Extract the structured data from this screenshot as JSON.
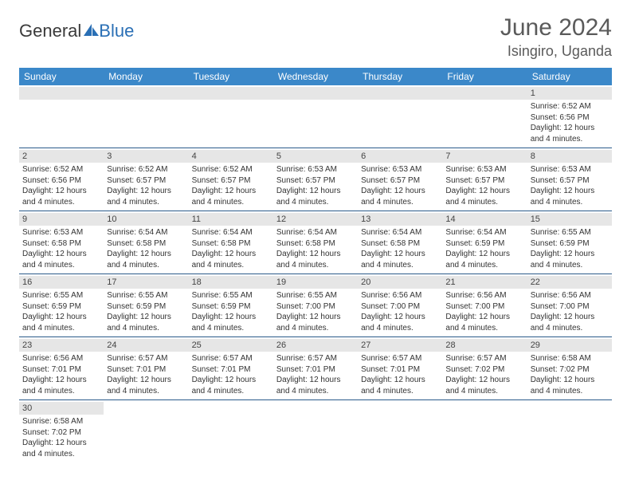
{
  "logo": {
    "word1": "General",
    "word2": "Blue"
  },
  "header": {
    "title": "June 2024",
    "location": "Isingiro, Uganda"
  },
  "colors": {
    "header_bg": "#3b88c9",
    "header_text": "#ffffff",
    "daynum_bg": "#e6e6e6",
    "row_border": "#2a5a8a",
    "logo_blue": "#2a6fb5",
    "title_gray": "#5a5a5a"
  },
  "day_headers": [
    "Sunday",
    "Monday",
    "Tuesday",
    "Wednesday",
    "Thursday",
    "Friday",
    "Saturday"
  ],
  "weeks": [
    [
      null,
      null,
      null,
      null,
      null,
      null,
      {
        "n": "1",
        "sr": "Sunrise: 6:52 AM",
        "ss": "Sunset: 6:56 PM",
        "dl1": "Daylight: 12 hours",
        "dl2": "and 4 minutes."
      }
    ],
    [
      {
        "n": "2",
        "sr": "Sunrise: 6:52 AM",
        "ss": "Sunset: 6:56 PM",
        "dl1": "Daylight: 12 hours",
        "dl2": "and 4 minutes."
      },
      {
        "n": "3",
        "sr": "Sunrise: 6:52 AM",
        "ss": "Sunset: 6:57 PM",
        "dl1": "Daylight: 12 hours",
        "dl2": "and 4 minutes."
      },
      {
        "n": "4",
        "sr": "Sunrise: 6:52 AM",
        "ss": "Sunset: 6:57 PM",
        "dl1": "Daylight: 12 hours",
        "dl2": "and 4 minutes."
      },
      {
        "n": "5",
        "sr": "Sunrise: 6:53 AM",
        "ss": "Sunset: 6:57 PM",
        "dl1": "Daylight: 12 hours",
        "dl2": "and 4 minutes."
      },
      {
        "n": "6",
        "sr": "Sunrise: 6:53 AM",
        "ss": "Sunset: 6:57 PM",
        "dl1": "Daylight: 12 hours",
        "dl2": "and 4 minutes."
      },
      {
        "n": "7",
        "sr": "Sunrise: 6:53 AM",
        "ss": "Sunset: 6:57 PM",
        "dl1": "Daylight: 12 hours",
        "dl2": "and 4 minutes."
      },
      {
        "n": "8",
        "sr": "Sunrise: 6:53 AM",
        "ss": "Sunset: 6:57 PM",
        "dl1": "Daylight: 12 hours",
        "dl2": "and 4 minutes."
      }
    ],
    [
      {
        "n": "9",
        "sr": "Sunrise: 6:53 AM",
        "ss": "Sunset: 6:58 PM",
        "dl1": "Daylight: 12 hours",
        "dl2": "and 4 minutes."
      },
      {
        "n": "10",
        "sr": "Sunrise: 6:54 AM",
        "ss": "Sunset: 6:58 PM",
        "dl1": "Daylight: 12 hours",
        "dl2": "and 4 minutes."
      },
      {
        "n": "11",
        "sr": "Sunrise: 6:54 AM",
        "ss": "Sunset: 6:58 PM",
        "dl1": "Daylight: 12 hours",
        "dl2": "and 4 minutes."
      },
      {
        "n": "12",
        "sr": "Sunrise: 6:54 AM",
        "ss": "Sunset: 6:58 PM",
        "dl1": "Daylight: 12 hours",
        "dl2": "and 4 minutes."
      },
      {
        "n": "13",
        "sr": "Sunrise: 6:54 AM",
        "ss": "Sunset: 6:58 PM",
        "dl1": "Daylight: 12 hours",
        "dl2": "and 4 minutes."
      },
      {
        "n": "14",
        "sr": "Sunrise: 6:54 AM",
        "ss": "Sunset: 6:59 PM",
        "dl1": "Daylight: 12 hours",
        "dl2": "and 4 minutes."
      },
      {
        "n": "15",
        "sr": "Sunrise: 6:55 AM",
        "ss": "Sunset: 6:59 PM",
        "dl1": "Daylight: 12 hours",
        "dl2": "and 4 minutes."
      }
    ],
    [
      {
        "n": "16",
        "sr": "Sunrise: 6:55 AM",
        "ss": "Sunset: 6:59 PM",
        "dl1": "Daylight: 12 hours",
        "dl2": "and 4 minutes."
      },
      {
        "n": "17",
        "sr": "Sunrise: 6:55 AM",
        "ss": "Sunset: 6:59 PM",
        "dl1": "Daylight: 12 hours",
        "dl2": "and 4 minutes."
      },
      {
        "n": "18",
        "sr": "Sunrise: 6:55 AM",
        "ss": "Sunset: 6:59 PM",
        "dl1": "Daylight: 12 hours",
        "dl2": "and 4 minutes."
      },
      {
        "n": "19",
        "sr": "Sunrise: 6:55 AM",
        "ss": "Sunset: 7:00 PM",
        "dl1": "Daylight: 12 hours",
        "dl2": "and 4 minutes."
      },
      {
        "n": "20",
        "sr": "Sunrise: 6:56 AM",
        "ss": "Sunset: 7:00 PM",
        "dl1": "Daylight: 12 hours",
        "dl2": "and 4 minutes."
      },
      {
        "n": "21",
        "sr": "Sunrise: 6:56 AM",
        "ss": "Sunset: 7:00 PM",
        "dl1": "Daylight: 12 hours",
        "dl2": "and 4 minutes."
      },
      {
        "n": "22",
        "sr": "Sunrise: 6:56 AM",
        "ss": "Sunset: 7:00 PM",
        "dl1": "Daylight: 12 hours",
        "dl2": "and 4 minutes."
      }
    ],
    [
      {
        "n": "23",
        "sr": "Sunrise: 6:56 AM",
        "ss": "Sunset: 7:01 PM",
        "dl1": "Daylight: 12 hours",
        "dl2": "and 4 minutes."
      },
      {
        "n": "24",
        "sr": "Sunrise: 6:57 AM",
        "ss": "Sunset: 7:01 PM",
        "dl1": "Daylight: 12 hours",
        "dl2": "and 4 minutes."
      },
      {
        "n": "25",
        "sr": "Sunrise: 6:57 AM",
        "ss": "Sunset: 7:01 PM",
        "dl1": "Daylight: 12 hours",
        "dl2": "and 4 minutes."
      },
      {
        "n": "26",
        "sr": "Sunrise: 6:57 AM",
        "ss": "Sunset: 7:01 PM",
        "dl1": "Daylight: 12 hours",
        "dl2": "and 4 minutes."
      },
      {
        "n": "27",
        "sr": "Sunrise: 6:57 AM",
        "ss": "Sunset: 7:01 PM",
        "dl1": "Daylight: 12 hours",
        "dl2": "and 4 minutes."
      },
      {
        "n": "28",
        "sr": "Sunrise: 6:57 AM",
        "ss": "Sunset: 7:02 PM",
        "dl1": "Daylight: 12 hours",
        "dl2": "and 4 minutes."
      },
      {
        "n": "29",
        "sr": "Sunrise: 6:58 AM",
        "ss": "Sunset: 7:02 PM",
        "dl1": "Daylight: 12 hours",
        "dl2": "and 4 minutes."
      }
    ],
    [
      {
        "n": "30",
        "sr": "Sunrise: 6:58 AM",
        "ss": "Sunset: 7:02 PM",
        "dl1": "Daylight: 12 hours",
        "dl2": "and 4 minutes."
      },
      null,
      null,
      null,
      null,
      null,
      null
    ]
  ]
}
